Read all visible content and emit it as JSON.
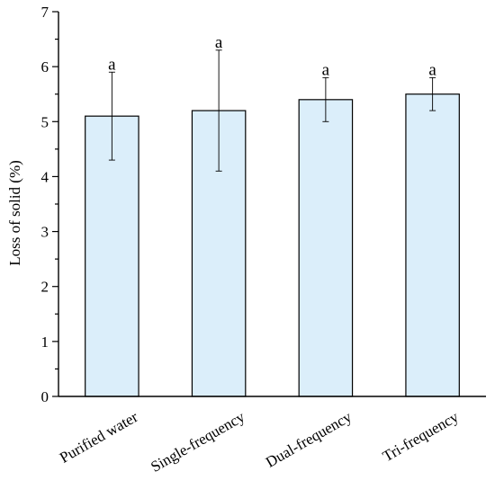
{
  "chart_data": {
    "type": "bar",
    "title": "",
    "xlabel": "",
    "ylabel": "Loss of solid (%)",
    "ylim": [
      0,
      7
    ],
    "yticks": [
      0,
      1,
      2,
      3,
      4,
      5,
      6,
      7
    ],
    "categories": [
      "Purified water",
      "Single-frequency",
      "Dual-frequency",
      "Tri-frequency"
    ],
    "values": [
      5.1,
      5.2,
      5.4,
      5.5
    ],
    "error_low": [
      4.3,
      4.1,
      5.0,
      5.2
    ],
    "error_high": [
      5.9,
      6.3,
      5.8,
      5.8
    ],
    "significance_labels": [
      "a",
      "a",
      "a",
      "a"
    ],
    "bar_color": "#dbeefa",
    "edge_color": "#000000",
    "grid": false,
    "legend": "none"
  }
}
